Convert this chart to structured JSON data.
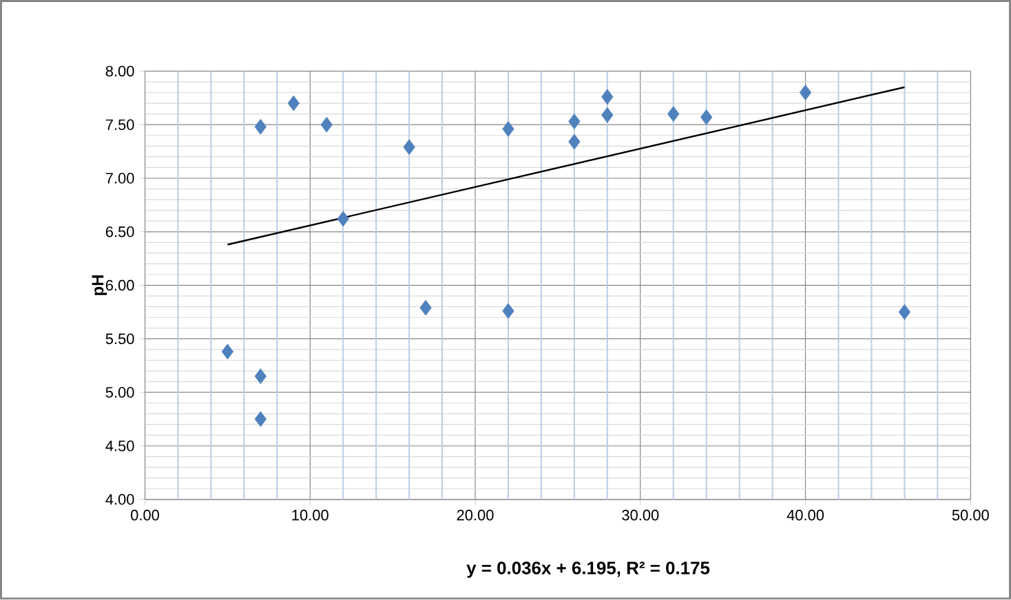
{
  "chart_data": {
    "type": "scatter",
    "ylabel": "pH",
    "series": [
      {
        "color": "#4f81bd",
        "marker": "diamond",
        "x": [
          5,
          7,
          7,
          7,
          9,
          11,
          12,
          16,
          17,
          22,
          22,
          26,
          26,
          28,
          28,
          32,
          34,
          40,
          46
        ],
        "values": [
          5.38,
          7.48,
          5.15,
          4.75,
          7.7,
          7.5,
          6.62,
          7.29,
          5.79,
          7.46,
          5.76,
          7.53,
          7.34,
          7.76,
          7.59,
          7.6,
          7.57,
          7.8,
          5.75
        ]
      },
      {
        "type": "line",
        "color": "#000000",
        "marker": "none",
        "line_style": "solid",
        "x": [
          5,
          46
        ],
        "values": [
          6.38,
          7.85
        ]
      }
    ],
    "xlim": [
      0,
      50
    ],
    "ylim": [
      4,
      8
    ],
    "xticks": [
      {
        "value": 0,
        "label": "0.00"
      },
      {
        "value": 2,
        "label": null
      },
      {
        "value": 4,
        "label": null
      },
      {
        "value": 6,
        "label": null
      },
      {
        "value": 8,
        "label": null
      },
      {
        "value": 10,
        "label": "10.00"
      },
      {
        "value": 12,
        "label": null
      },
      {
        "value": 14,
        "label": null
      },
      {
        "value": 16,
        "label": null
      },
      {
        "value": 18,
        "label": null
      },
      {
        "value": 20,
        "label": "20.00"
      },
      {
        "value": 22,
        "label": null
      },
      {
        "value": 24,
        "label": null
      },
      {
        "value": 26,
        "label": null
      },
      {
        "value": 28,
        "label": null
      },
      {
        "value": 30,
        "label": "30.00"
      },
      {
        "value": 32,
        "label": null
      },
      {
        "value": 34,
        "label": null
      },
      {
        "value": 36,
        "label": null
      },
      {
        "value": 38,
        "label": null
      },
      {
        "value": 40,
        "label": "40.00"
      },
      {
        "value": 42,
        "label": null
      },
      {
        "value": 44,
        "label": null
      },
      {
        "value": 46,
        "label": null
      },
      {
        "value": 48,
        "label": null
      },
      {
        "value": 50,
        "label": "50.00"
      }
    ],
    "yticks": [
      {
        "value": 4,
        "label": "4.00"
      },
      {
        "value": 4.5,
        "label": "4.50"
      },
      {
        "value": 5,
        "label": "5.00"
      },
      {
        "value": 5.5,
        "label": "5.50"
      },
      {
        "value": 6,
        "label": "6.00"
      },
      {
        "value": 6.5,
        "label": "6.50"
      },
      {
        "value": 7,
        "label": "7.00"
      },
      {
        "value": 7.5,
        "label": "7.50"
      },
      {
        "value": 8,
        "label": "8.00"
      }
    ],
    "grid": true,
    "annotations": [
      "y = 0.036x + 6.195, R² = 0.175"
    ]
  }
}
